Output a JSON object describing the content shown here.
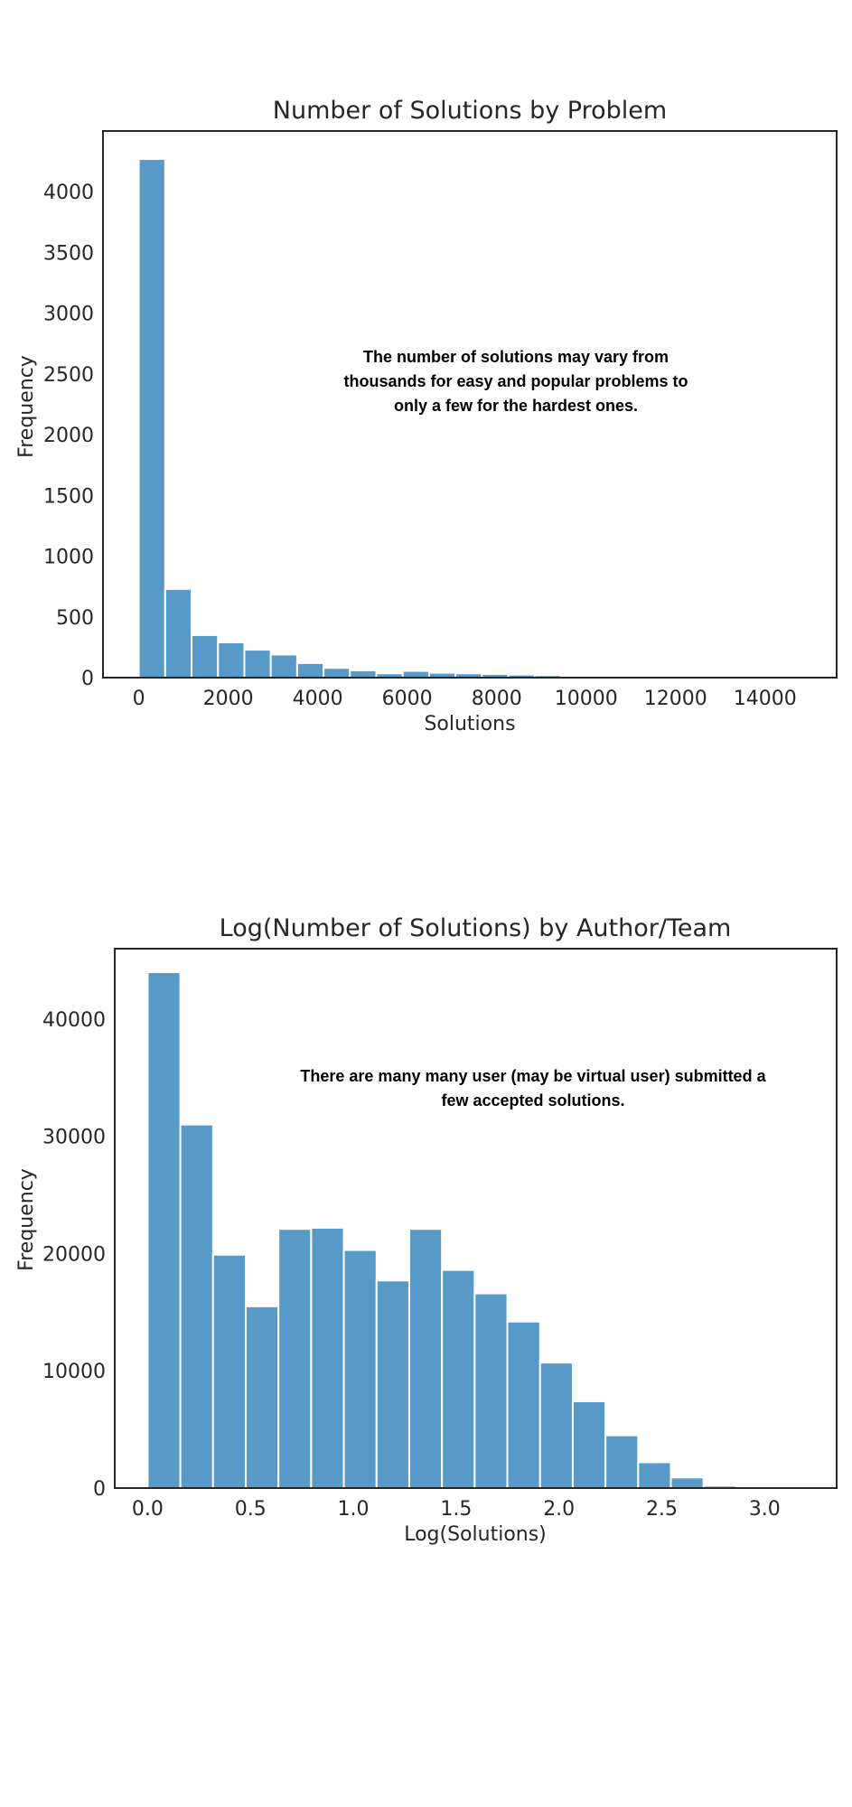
{
  "chart_data": [
    {
      "type": "bar",
      "title": "Number of Solutions by Problem",
      "xlabel": "Solutions",
      "ylabel": "Frequency",
      "xlim": [
        -800,
        15600
      ],
      "ylim": [
        0,
        4500
      ],
      "xticks": [
        "0",
        "2000",
        "4000",
        "6000",
        "8000",
        "10000",
        "12000",
        "14000"
      ],
      "xtick_values": [
        0,
        2000,
        4000,
        6000,
        8000,
        10000,
        12000,
        14000
      ],
      "yticks": [
        "0",
        "500",
        "1000",
        "1500",
        "2000",
        "2500",
        "3000",
        "3500",
        "4000"
      ],
      "ytick_values": [
        0,
        500,
        1000,
        1500,
        2000,
        2500,
        3000,
        3500,
        4000
      ],
      "bin_start": 0,
      "bin_width": 590,
      "values": [
        4270,
        730,
        350,
        290,
        230,
        190,
        120,
        80,
        60,
        35,
        55,
        40,
        35,
        30,
        25,
        20,
        10,
        8,
        6,
        5,
        4,
        3,
        2,
        2,
        1
      ],
      "annotation": [
        "The number of solutions may vary from",
        "thousands for easy and popular problems to",
        "only a few for the hardest ones."
      ],
      "color": "#5799c7",
      "grid": false
    },
    {
      "type": "bar",
      "title": "Log(Number of Solutions) by Author/Team",
      "xlabel": "Log(Solutions)",
      "ylabel": "Frequency",
      "xlim": [
        -0.16,
        3.35
      ],
      "ylim": [
        0,
        46000
      ],
      "xticks": [
        "0.0",
        "0.5",
        "1.0",
        "1.5",
        "2.0",
        "2.5",
        "3.0"
      ],
      "xtick_values": [
        0,
        0.5,
        1.0,
        1.5,
        2.0,
        2.5,
        3.0
      ],
      "yticks": [
        "0",
        "10000",
        "20000",
        "30000",
        "40000"
      ],
      "ytick_values": [
        0,
        10000,
        20000,
        30000,
        40000
      ],
      "bin_start": 0,
      "bin_width": 0.159,
      "values": [
        44000,
        31000,
        19900,
        15500,
        22100,
        22200,
        20300,
        17700,
        22100,
        18600,
        16600,
        14200,
        10700,
        7400,
        4500,
        2200,
        900,
        200,
        80,
        40,
        20
      ],
      "annotation": [
        "There are many many user (may be virtual user) submitted a",
        "few accepted solutions."
      ],
      "color": "#5799c7",
      "grid": false
    }
  ]
}
